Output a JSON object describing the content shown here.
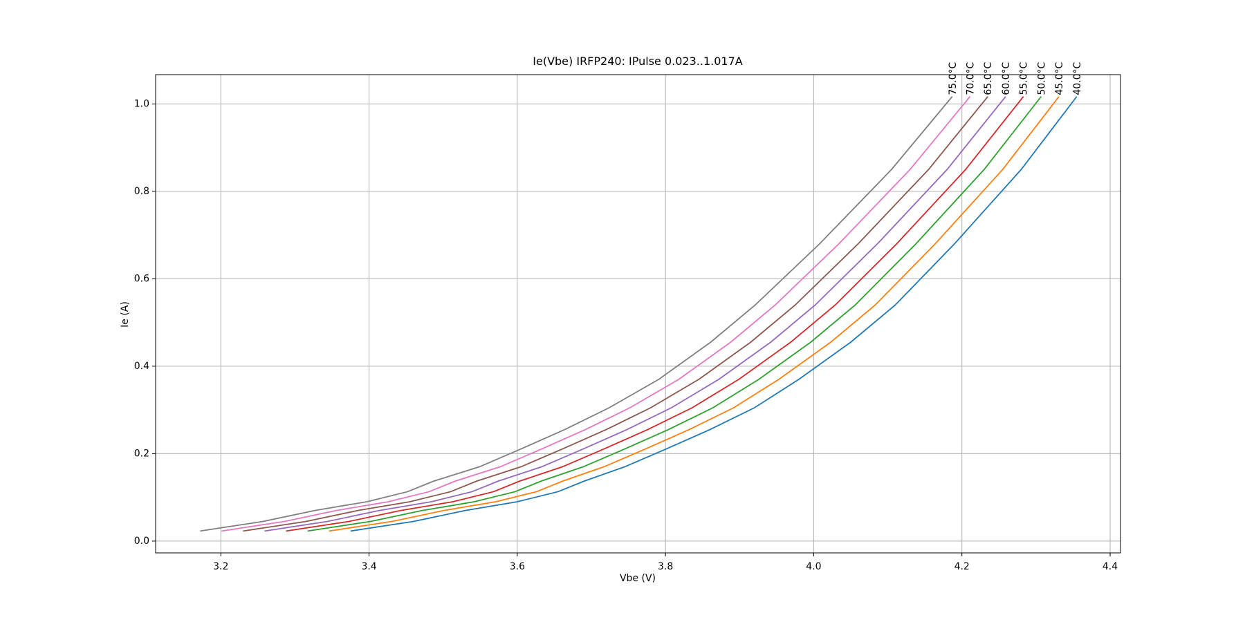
{
  "chart_data": {
    "type": "line",
    "title": "Ie(Vbe) IRFP240: IPulse 0.023..1.017A",
    "x_label": "Vbe (V)",
    "y_label": "Ie (A)",
    "grid": true,
    "xlim": [
      3.112,
      4.414
    ],
    "xticks": [
      3.2,
      3.4,
      3.6,
      3.8,
      {
        "value": 4,
        "label": "4.0"
      },
      4.2,
      4.4
    ],
    "ylim": [
      -0.027,
      1.067
    ],
    "yticks": [
      {
        "value": 0,
        "label": "0.0"
      },
      0.2,
      0.4,
      0.6,
      0.8,
      {
        "value": 1,
        "label": "1.0"
      }
    ],
    "series": [
      {
        "name": "40.0°C",
        "color": "#1f77b4",
        "x": [
          3.375,
          3.46,
          3.53,
          3.6,
          3.655,
          3.69,
          3.745,
          3.8,
          3.86,
          3.92,
          3.98,
          4.05,
          4.11,
          4.19,
          4.28,
          4.355
        ],
        "values": [
          0.023,
          0.045,
          0.07,
          0.09,
          0.113,
          0.137,
          0.17,
          0.21,
          0.255,
          0.305,
          0.37,
          0.455,
          0.54,
          0.68,
          0.85,
          1.017
        ]
      },
      {
        "name": "45.0°C",
        "color": "#ff7f0e",
        "x": [
          3.346,
          3.431,
          3.501,
          3.571,
          3.626,
          3.661,
          3.717,
          3.772,
          3.832,
          3.892,
          3.953,
          4.023,
          4.083,
          4.164,
          4.255,
          4.331
        ],
        "values": [
          0.023,
          0.045,
          0.07,
          0.09,
          0.113,
          0.137,
          0.17,
          0.21,
          0.255,
          0.305,
          0.37,
          0.455,
          0.54,
          0.68,
          0.85,
          1.017
        ]
      },
      {
        "name": "50.0°C",
        "color": "#2ca02c",
        "x": [
          3.317,
          3.402,
          3.472,
          3.542,
          3.597,
          3.632,
          3.689,
          3.744,
          3.804,
          3.864,
          3.926,
          3.996,
          4.056,
          4.138,
          4.23,
          4.307
        ],
        "values": [
          0.023,
          0.045,
          0.07,
          0.09,
          0.113,
          0.137,
          0.17,
          0.21,
          0.255,
          0.305,
          0.37,
          0.455,
          0.54,
          0.68,
          0.85,
          1.017
        ]
      },
      {
        "name": "55.0°C",
        "color": "#d62728",
        "x": [
          3.288,
          3.373,
          3.443,
          3.513,
          3.568,
          3.603,
          3.661,
          3.716,
          3.776,
          3.836,
          3.899,
          3.969,
          4.029,
          4.112,
          4.205,
          4.283
        ],
        "values": [
          0.023,
          0.045,
          0.07,
          0.09,
          0.113,
          0.137,
          0.17,
          0.21,
          0.255,
          0.305,
          0.37,
          0.455,
          0.54,
          0.68,
          0.85,
          1.017
        ]
      },
      {
        "name": "60.0°C",
        "color": "#9467bd",
        "x": [
          3.259,
          3.344,
          3.414,
          3.484,
          3.539,
          3.574,
          3.633,
          3.688,
          3.748,
          3.808,
          3.872,
          3.942,
          4.002,
          4.086,
          4.18,
          4.259
        ],
        "values": [
          0.023,
          0.045,
          0.07,
          0.09,
          0.113,
          0.137,
          0.17,
          0.21,
          0.255,
          0.305,
          0.37,
          0.455,
          0.54,
          0.68,
          0.85,
          1.017
        ]
      },
      {
        "name": "65.0°C",
        "color": "#8c564b",
        "x": [
          3.23,
          3.315,
          3.385,
          3.455,
          3.51,
          3.545,
          3.605,
          3.66,
          3.72,
          3.78,
          3.845,
          3.915,
          3.975,
          4.06,
          4.155,
          4.235
        ],
        "values": [
          0.023,
          0.045,
          0.07,
          0.09,
          0.113,
          0.137,
          0.17,
          0.21,
          0.255,
          0.305,
          0.37,
          0.455,
          0.54,
          0.68,
          0.85,
          1.017
        ]
      },
      {
        "name": "70.0°C",
        "color": "#e377c2",
        "x": [
          3.201,
          3.286,
          3.356,
          3.426,
          3.481,
          3.516,
          3.577,
          3.632,
          3.692,
          3.752,
          3.818,
          3.888,
          3.948,
          4.034,
          4.13,
          4.211
        ],
        "values": [
          0.023,
          0.045,
          0.07,
          0.09,
          0.113,
          0.137,
          0.17,
          0.21,
          0.255,
          0.305,
          0.37,
          0.455,
          0.54,
          0.68,
          0.85,
          1.017
        ]
      },
      {
        "name": "75.0°C",
        "color": "#7f7f7f",
        "x": [
          3.172,
          3.257,
          3.327,
          3.397,
          3.452,
          3.487,
          3.549,
          3.604,
          3.664,
          3.724,
          3.791,
          3.861,
          3.921,
          4.008,
          4.105,
          4.187
        ],
        "values": [
          0.023,
          0.045,
          0.07,
          0.09,
          0.113,
          0.137,
          0.17,
          0.21,
          0.255,
          0.305,
          0.37,
          0.455,
          0.54,
          0.68,
          0.85,
          1.017
        ]
      }
    ]
  }
}
